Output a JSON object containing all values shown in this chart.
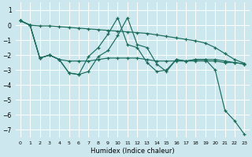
{
  "xlabel": "Humidex (Indice chaleur)",
  "bg_color": "#cce8ee",
  "grid_color": "#ffffff",
  "line_color": "#1a6b5a",
  "xlim": [
    -0.5,
    23.5
  ],
  "ylim": [
    -7.5,
    1.5
  ],
  "yticks": [
    1,
    0,
    -1,
    -2,
    -3,
    -4,
    -5,
    -6,
    -7
  ],
  "xticks": [
    0,
    1,
    2,
    3,
    4,
    5,
    6,
    7,
    8,
    9,
    10,
    11,
    12,
    13,
    14,
    15,
    16,
    17,
    18,
    19,
    20,
    21,
    22,
    23
  ],
  "series1_x": [
    0,
    1,
    2,
    3,
    4,
    5,
    6,
    7,
    8,
    9,
    10,
    11,
    12,
    13,
    14,
    15,
    16,
    17,
    18,
    19,
    20,
    21,
    22,
    23
  ],
  "series1_y": [
    0.3,
    0.0,
    -0.05,
    -0.05,
    -0.1,
    -0.15,
    -0.2,
    -0.25,
    -0.3,
    -0.35,
    -0.4,
    -0.45,
    -0.5,
    -0.55,
    -0.65,
    -0.75,
    -0.85,
    -0.95,
    -1.05,
    -1.2,
    -1.5,
    -1.9,
    -2.3,
    -2.55
  ],
  "series2_x": [
    0,
    1,
    2,
    3,
    4,
    5,
    6,
    7,
    8,
    9,
    10,
    11,
    12,
    13,
    14,
    15,
    16,
    17,
    18,
    19,
    20,
    21,
    22,
    23
  ],
  "series2_y": [
    0.3,
    0.0,
    -2.2,
    -2.0,
    -2.3,
    -3.2,
    -3.3,
    -2.1,
    -1.5,
    -0.6,
    0.5,
    -1.3,
    -1.5,
    -2.5,
    -3.1,
    -3.0,
    -2.3,
    -2.4,
    -2.3,
    -2.3,
    -3.0,
    -5.7,
    -6.4,
    -7.3
  ],
  "series3_x": [
    0,
    1,
    2,
    3,
    4,
    5,
    6,
    7,
    8,
    9,
    10,
    11,
    12,
    13,
    14,
    15,
    16,
    17,
    18,
    19,
    20,
    21,
    22,
    23
  ],
  "series3_y": [
    0.3,
    0.0,
    -2.2,
    -2.0,
    -2.3,
    -3.2,
    -3.3,
    -3.1,
    -2.1,
    -1.7,
    -0.7,
    0.5,
    -1.3,
    -1.5,
    -2.6,
    -3.1,
    -2.3,
    -2.4,
    -2.3,
    -2.3,
    -2.3,
    -2.4,
    -2.5,
    -2.6
  ],
  "series4_x": [
    0,
    1,
    2,
    3,
    4,
    5,
    6,
    7,
    8,
    9,
    10,
    11,
    12,
    13,
    14,
    15,
    16,
    17,
    18,
    19,
    20,
    21,
    22,
    23
  ],
  "series4_y": [
    0.3,
    0.0,
    -2.2,
    -2.0,
    -2.3,
    -2.4,
    -2.4,
    -2.4,
    -2.3,
    -2.2,
    -2.2,
    -2.2,
    -2.2,
    -2.3,
    -2.4,
    -2.4,
    -2.4,
    -2.4,
    -2.4,
    -2.4,
    -2.4,
    -2.5,
    -2.5,
    -2.6
  ]
}
